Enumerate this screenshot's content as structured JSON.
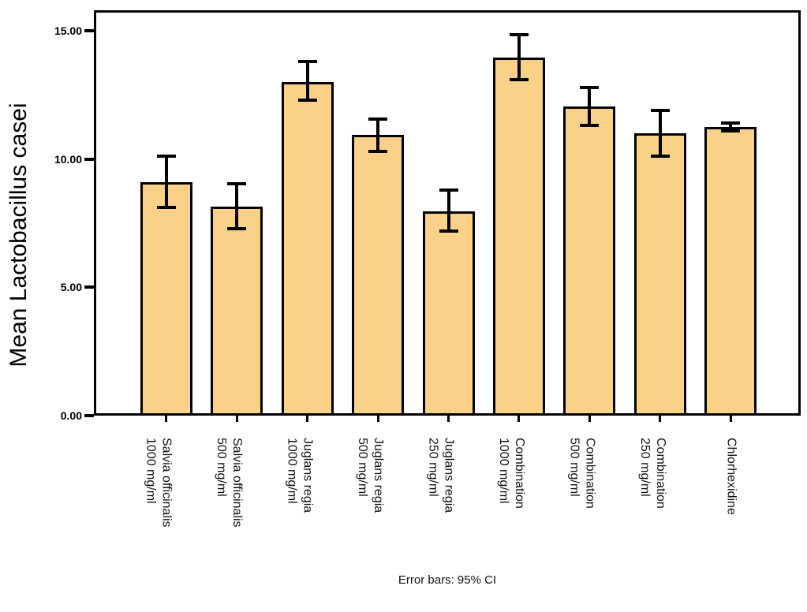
{
  "chart_data": {
    "type": "bar",
    "title": "",
    "xlabel": "",
    "ylabel": "Mean Lactobacillus casei",
    "caption": "Error bars: 95% CI",
    "ylim": [
      0,
      15.8
    ],
    "grid": false,
    "legend": false,
    "bar_fill": "#FAD189",
    "bar_border": "#000000",
    "error_bar_color": "#000000",
    "axis_color": "#000000",
    "yticks": [
      {
        "value": 0,
        "label": "0.00"
      },
      {
        "value": 5,
        "label": "5.00"
      },
      {
        "value": 10,
        "label": "10.00"
      },
      {
        "value": 15,
        "label": "15.00"
      }
    ],
    "categories": [
      "Salvia officinalis 1000 mg/ml",
      "Salvia officinalis 500 mg/ml",
      "Juglans regia 1000 mg/ml",
      "Juglans regia 500 mg/ml",
      "Juglans regia 250 mg/ml",
      "Combination 1000 mg/ml",
      "Combination 500 mg/ml",
      "Combination 250 mg/ml",
      "Chlorhexidine"
    ],
    "category_lines": [
      [
        "Salvia officinalis",
        "1000 mg/ml"
      ],
      [
        "Salvia officinalis",
        "500 mg/ml"
      ],
      [
        "Juglans regia",
        "1000 mg/ml"
      ],
      [
        "Juglans regia",
        "500 mg/ml"
      ],
      [
        "Juglans regia",
        "250 mg/ml"
      ],
      [
        "Combination",
        "1000 mg/ml"
      ],
      [
        "Combination",
        "500 mg/ml"
      ],
      [
        "Combination",
        "250 mg/ml"
      ],
      [
        "Chlorhexidine"
      ]
    ],
    "series": [
      {
        "name": "Mean Lactobacillus casei",
        "values": [
          9.1,
          8.15,
          13.0,
          10.95,
          7.95,
          13.95,
          12.05,
          11.0,
          11.25
        ],
        "ci_low": [
          8.1,
          7.3,
          12.3,
          10.3,
          7.2,
          13.1,
          11.3,
          10.1,
          11.1
        ],
        "ci_high": [
          10.1,
          9.05,
          13.8,
          11.55,
          8.8,
          14.85,
          12.8,
          11.9,
          11.4
        ]
      }
    ]
  }
}
